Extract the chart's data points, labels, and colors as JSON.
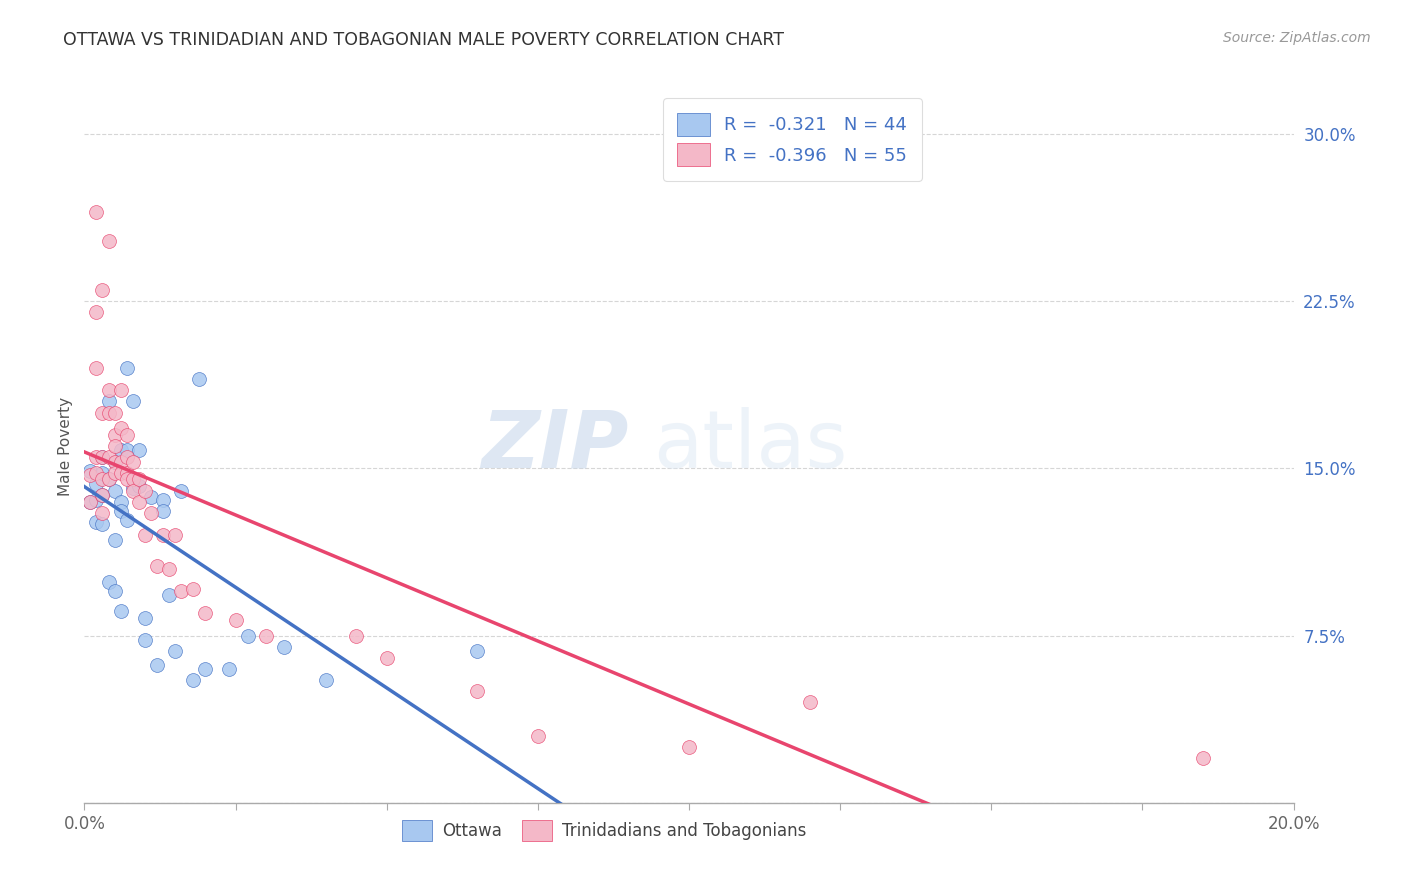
{
  "title": "OTTAWA VS TRINIDADIAN AND TOBAGONIAN MALE POVERTY CORRELATION CHART",
  "source": "Source: ZipAtlas.com",
  "ylabel": "Male Poverty",
  "y_ticks": [
    0.0,
    0.075,
    0.15,
    0.225,
    0.3
  ],
  "y_tick_labels": [
    "",
    "7.5%",
    "15.0%",
    "22.5%",
    "30.0%"
  ],
  "x_ticks": [
    0.0,
    0.025,
    0.05,
    0.075,
    0.1,
    0.125,
    0.15,
    0.175,
    0.2
  ],
  "x_tick_labels": [
    "0.0%",
    "",
    "",
    "",
    "",
    "",
    "",
    "",
    "20.0%"
  ],
  "x_range": [
    0.0,
    0.2
  ],
  "y_range": [
    0.0,
    0.32
  ],
  "ottawa_color": "#a8c8f0",
  "ottawa_line_color": "#4472c4",
  "trini_color": "#f4b8c8",
  "trini_line_color": "#e8456e",
  "ottawa_R": "-0.321",
  "ottawa_N": "44",
  "trini_R": "-0.396",
  "trini_N": "55",
  "legend_label_ottawa": "Ottawa",
  "legend_label_trini": "Trinidadians and Tobagonians",
  "watermark_zip": "ZIP",
  "watermark_atlas": "atlas",
  "background_color": "#ffffff",
  "grid_color": "#cccccc",
  "ottawa_x": [
    0.001,
    0.001,
    0.002,
    0.002,
    0.002,
    0.003,
    0.003,
    0.003,
    0.003,
    0.004,
    0.004,
    0.004,
    0.005,
    0.005,
    0.005,
    0.005,
    0.006,
    0.006,
    0.006,
    0.006,
    0.007,
    0.007,
    0.007,
    0.008,
    0.008,
    0.009,
    0.009,
    0.01,
    0.01,
    0.011,
    0.012,
    0.013,
    0.013,
    0.014,
    0.015,
    0.016,
    0.018,
    0.019,
    0.02,
    0.024,
    0.027,
    0.033,
    0.04,
    0.065
  ],
  "ottawa_y": [
    0.149,
    0.135,
    0.143,
    0.136,
    0.126,
    0.155,
    0.148,
    0.138,
    0.125,
    0.18,
    0.145,
    0.099,
    0.153,
    0.14,
    0.118,
    0.095,
    0.158,
    0.135,
    0.131,
    0.086,
    0.195,
    0.158,
    0.127,
    0.18,
    0.141,
    0.158,
    0.142,
    0.083,
    0.073,
    0.137,
    0.062,
    0.136,
    0.131,
    0.093,
    0.068,
    0.14,
    0.055,
    0.19,
    0.06,
    0.06,
    0.075,
    0.07,
    0.055,
    0.068
  ],
  "trini_x": [
    0.001,
    0.001,
    0.002,
    0.002,
    0.002,
    0.002,
    0.002,
    0.003,
    0.003,
    0.003,
    0.003,
    0.003,
    0.003,
    0.004,
    0.004,
    0.004,
    0.004,
    0.004,
    0.005,
    0.005,
    0.005,
    0.005,
    0.005,
    0.006,
    0.006,
    0.006,
    0.006,
    0.007,
    0.007,
    0.007,
    0.007,
    0.008,
    0.008,
    0.008,
    0.009,
    0.009,
    0.01,
    0.01,
    0.011,
    0.012,
    0.013,
    0.014,
    0.015,
    0.016,
    0.018,
    0.02,
    0.025,
    0.03,
    0.045,
    0.05,
    0.065,
    0.075,
    0.1,
    0.12,
    0.185
  ],
  "trini_y": [
    0.147,
    0.135,
    0.265,
    0.22,
    0.195,
    0.155,
    0.148,
    0.23,
    0.175,
    0.155,
    0.145,
    0.138,
    0.13,
    0.252,
    0.185,
    0.175,
    0.155,
    0.145,
    0.175,
    0.165,
    0.16,
    0.153,
    0.148,
    0.185,
    0.168,
    0.153,
    0.148,
    0.165,
    0.155,
    0.148,
    0.145,
    0.153,
    0.145,
    0.14,
    0.145,
    0.135,
    0.14,
    0.12,
    0.13,
    0.106,
    0.12,
    0.105,
    0.12,
    0.095,
    0.096,
    0.085,
    0.082,
    0.075,
    0.075,
    0.065,
    0.05,
    0.03,
    0.025,
    0.045,
    0.02
  ]
}
